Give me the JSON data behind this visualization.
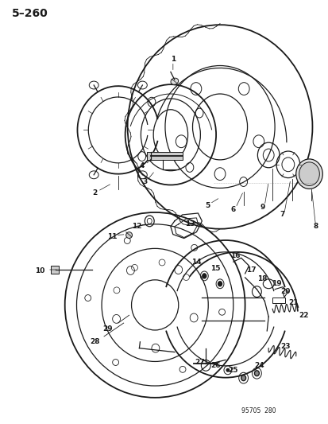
{
  "page_number": "5–260",
  "diagram_number": "95705  280",
  "background_color": "#ffffff",
  "line_color": "#1a1a1a",
  "title_fontsize": 10,
  "label_fontsize": 6.5,
  "figsize": [
    4.13,
    5.33
  ],
  "dpi": 100
}
